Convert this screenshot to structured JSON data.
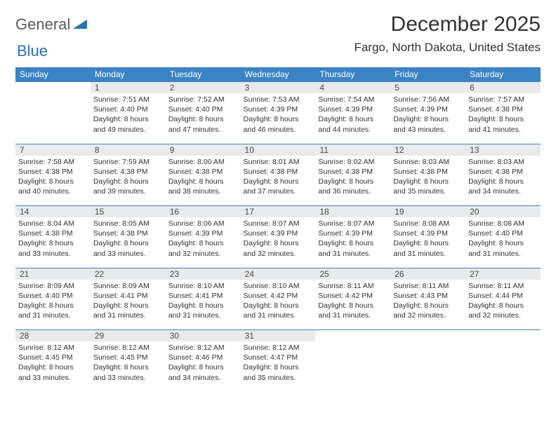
{
  "logo": {
    "general": "General",
    "blue": "Blue"
  },
  "title": "December 2025",
  "location": "Fargo, North Dakota, United States",
  "colors": {
    "header_bg": "#3a83c5",
    "header_text": "#ffffff",
    "daynum_bg": "#e9eaeb",
    "border": "#3a83c5",
    "body_text": "#333333",
    "logo_gray": "#5a5a5a",
    "logo_blue": "#2a71b8"
  },
  "weekdays": [
    "Sunday",
    "Monday",
    "Tuesday",
    "Wednesday",
    "Thursday",
    "Friday",
    "Saturday"
  ],
  "weeks": [
    {
      "nums": [
        "",
        "1",
        "2",
        "3",
        "4",
        "5",
        "6"
      ],
      "cells": [
        {
          "sunrise": "",
          "sunset": "",
          "daylight1": "",
          "daylight2": ""
        },
        {
          "sunrise": "Sunrise: 7:51 AM",
          "sunset": "Sunset: 4:40 PM",
          "daylight1": "Daylight: 8 hours",
          "daylight2": "and 49 minutes."
        },
        {
          "sunrise": "Sunrise: 7:52 AM",
          "sunset": "Sunset: 4:40 PM",
          "daylight1": "Daylight: 8 hours",
          "daylight2": "and 47 minutes."
        },
        {
          "sunrise": "Sunrise: 7:53 AM",
          "sunset": "Sunset: 4:39 PM",
          "daylight1": "Daylight: 8 hours",
          "daylight2": "and 46 minutes."
        },
        {
          "sunrise": "Sunrise: 7:54 AM",
          "sunset": "Sunset: 4:39 PM",
          "daylight1": "Daylight: 8 hours",
          "daylight2": "and 44 minutes."
        },
        {
          "sunrise": "Sunrise: 7:56 AM",
          "sunset": "Sunset: 4:39 PM",
          "daylight1": "Daylight: 8 hours",
          "daylight2": "and 43 minutes."
        },
        {
          "sunrise": "Sunrise: 7:57 AM",
          "sunset": "Sunset: 4:38 PM",
          "daylight1": "Daylight: 8 hours",
          "daylight2": "and 41 minutes."
        }
      ]
    },
    {
      "nums": [
        "7",
        "8",
        "9",
        "10",
        "11",
        "12",
        "13"
      ],
      "cells": [
        {
          "sunrise": "Sunrise: 7:58 AM",
          "sunset": "Sunset: 4:38 PM",
          "daylight1": "Daylight: 8 hours",
          "daylight2": "and 40 minutes."
        },
        {
          "sunrise": "Sunrise: 7:59 AM",
          "sunset": "Sunset: 4:38 PM",
          "daylight1": "Daylight: 8 hours",
          "daylight2": "and 39 minutes."
        },
        {
          "sunrise": "Sunrise: 8:00 AM",
          "sunset": "Sunset: 4:38 PM",
          "daylight1": "Daylight: 8 hours",
          "daylight2": "and 38 minutes."
        },
        {
          "sunrise": "Sunrise: 8:01 AM",
          "sunset": "Sunset: 4:38 PM",
          "daylight1": "Daylight: 8 hours",
          "daylight2": "and 37 minutes."
        },
        {
          "sunrise": "Sunrise: 8:02 AM",
          "sunset": "Sunset: 4:38 PM",
          "daylight1": "Daylight: 8 hours",
          "daylight2": "and 36 minutes."
        },
        {
          "sunrise": "Sunrise: 8:03 AM",
          "sunset": "Sunset: 4:38 PM",
          "daylight1": "Daylight: 8 hours",
          "daylight2": "and 35 minutes."
        },
        {
          "sunrise": "Sunrise: 8:03 AM",
          "sunset": "Sunset: 4:38 PM",
          "daylight1": "Daylight: 8 hours",
          "daylight2": "and 34 minutes."
        }
      ]
    },
    {
      "nums": [
        "14",
        "15",
        "16",
        "17",
        "18",
        "19",
        "20"
      ],
      "cells": [
        {
          "sunrise": "Sunrise: 8:04 AM",
          "sunset": "Sunset: 4:38 PM",
          "daylight1": "Daylight: 8 hours",
          "daylight2": "and 33 minutes."
        },
        {
          "sunrise": "Sunrise: 8:05 AM",
          "sunset": "Sunset: 4:38 PM",
          "daylight1": "Daylight: 8 hours",
          "daylight2": "and 33 minutes."
        },
        {
          "sunrise": "Sunrise: 8:06 AM",
          "sunset": "Sunset: 4:39 PM",
          "daylight1": "Daylight: 8 hours",
          "daylight2": "and 32 minutes."
        },
        {
          "sunrise": "Sunrise: 8:07 AM",
          "sunset": "Sunset: 4:39 PM",
          "daylight1": "Daylight: 8 hours",
          "daylight2": "and 32 minutes."
        },
        {
          "sunrise": "Sunrise: 8:07 AM",
          "sunset": "Sunset: 4:39 PM",
          "daylight1": "Daylight: 8 hours",
          "daylight2": "and 31 minutes."
        },
        {
          "sunrise": "Sunrise: 8:08 AM",
          "sunset": "Sunset: 4:39 PM",
          "daylight1": "Daylight: 8 hours",
          "daylight2": "and 31 minutes."
        },
        {
          "sunrise": "Sunrise: 8:08 AM",
          "sunset": "Sunset: 4:40 PM",
          "daylight1": "Daylight: 8 hours",
          "daylight2": "and 31 minutes."
        }
      ]
    },
    {
      "nums": [
        "21",
        "22",
        "23",
        "24",
        "25",
        "26",
        "27"
      ],
      "cells": [
        {
          "sunrise": "Sunrise: 8:09 AM",
          "sunset": "Sunset: 4:40 PM",
          "daylight1": "Daylight: 8 hours",
          "daylight2": "and 31 minutes."
        },
        {
          "sunrise": "Sunrise: 8:09 AM",
          "sunset": "Sunset: 4:41 PM",
          "daylight1": "Daylight: 8 hours",
          "daylight2": "and 31 minutes."
        },
        {
          "sunrise": "Sunrise: 8:10 AM",
          "sunset": "Sunset: 4:41 PM",
          "daylight1": "Daylight: 8 hours",
          "daylight2": "and 31 minutes."
        },
        {
          "sunrise": "Sunrise: 8:10 AM",
          "sunset": "Sunset: 4:42 PM",
          "daylight1": "Daylight: 8 hours",
          "daylight2": "and 31 minutes."
        },
        {
          "sunrise": "Sunrise: 8:11 AM",
          "sunset": "Sunset: 4:42 PM",
          "daylight1": "Daylight: 8 hours",
          "daylight2": "and 31 minutes."
        },
        {
          "sunrise": "Sunrise: 8:11 AM",
          "sunset": "Sunset: 4:43 PM",
          "daylight1": "Daylight: 8 hours",
          "daylight2": "and 32 minutes."
        },
        {
          "sunrise": "Sunrise: 8:11 AM",
          "sunset": "Sunset: 4:44 PM",
          "daylight1": "Daylight: 8 hours",
          "daylight2": "and 32 minutes."
        }
      ]
    },
    {
      "nums": [
        "28",
        "29",
        "30",
        "31",
        "",
        "",
        ""
      ],
      "cells": [
        {
          "sunrise": "Sunrise: 8:12 AM",
          "sunset": "Sunset: 4:45 PM",
          "daylight1": "Daylight: 8 hours",
          "daylight2": "and 33 minutes."
        },
        {
          "sunrise": "Sunrise: 8:12 AM",
          "sunset": "Sunset: 4:45 PM",
          "daylight1": "Daylight: 8 hours",
          "daylight2": "and 33 minutes."
        },
        {
          "sunrise": "Sunrise: 8:12 AM",
          "sunset": "Sunset: 4:46 PM",
          "daylight1": "Daylight: 8 hours",
          "daylight2": "and 34 minutes."
        },
        {
          "sunrise": "Sunrise: 8:12 AM",
          "sunset": "Sunset: 4:47 PM",
          "daylight1": "Daylight: 8 hours",
          "daylight2": "and 35 minutes."
        },
        {
          "sunrise": "",
          "sunset": "",
          "daylight1": "",
          "daylight2": ""
        },
        {
          "sunrise": "",
          "sunset": "",
          "daylight1": "",
          "daylight2": ""
        },
        {
          "sunrise": "",
          "sunset": "",
          "daylight1": "",
          "daylight2": ""
        }
      ]
    }
  ]
}
